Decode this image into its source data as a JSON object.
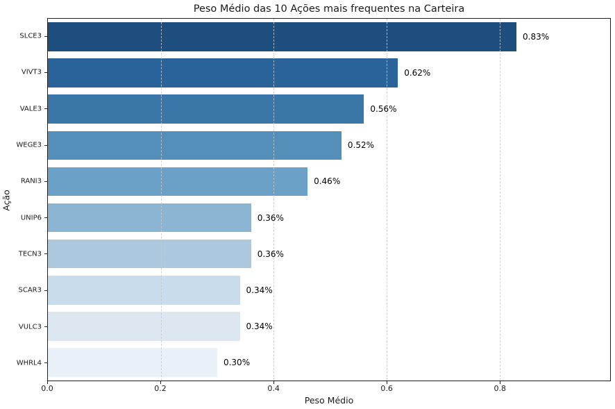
{
  "title": "Peso Médio das 10 Ações mais frequentes na Carteira",
  "chart_data": {
    "type": "bar",
    "orientation": "horizontal",
    "title": "Peso Médio das 10 Ações mais frequentes na Carteira",
    "xlabel": "Peso Médio",
    "ylabel": "Ação",
    "categories": [
      "SLCE3",
      "VIVT3",
      "VALE3",
      "WEGE3",
      "RANI3",
      "UNIP6",
      "TECN3",
      "SCAR3",
      "VULC3",
      "WHRL4"
    ],
    "values": [
      0.83,
      0.62,
      0.56,
      0.52,
      0.46,
      0.36,
      0.36,
      0.34,
      0.34,
      0.3
    ],
    "value_labels": [
      "0.83%",
      "0.62%",
      "0.56%",
      "0.52%",
      "0.46%",
      "0.36%",
      "0.36%",
      "0.34%",
      "0.34%",
      "0.30%"
    ],
    "bar_colors": [
      "#1d4e7e",
      "#2a639a",
      "#3b76a8",
      "#548fba",
      "#6ba1c7",
      "#8bb5d3",
      "#abc8de",
      "#c9dcec",
      "#dce7f2",
      "#eaf0f8"
    ],
    "xlim": [
      0,
      0.996
    ],
    "xticks": [
      0.0,
      0.2,
      0.4,
      0.6,
      0.8
    ],
    "xtick_labels": [
      "0.0",
      "0.2",
      "0.4",
      "0.6",
      "0.8"
    ],
    "grid": "vertical-dashed",
    "gridline_ticks": [
      0.2,
      0.4,
      0.6,
      0.8
    ],
    "legend": "none",
    "bar_height_fraction": 0.8
  }
}
